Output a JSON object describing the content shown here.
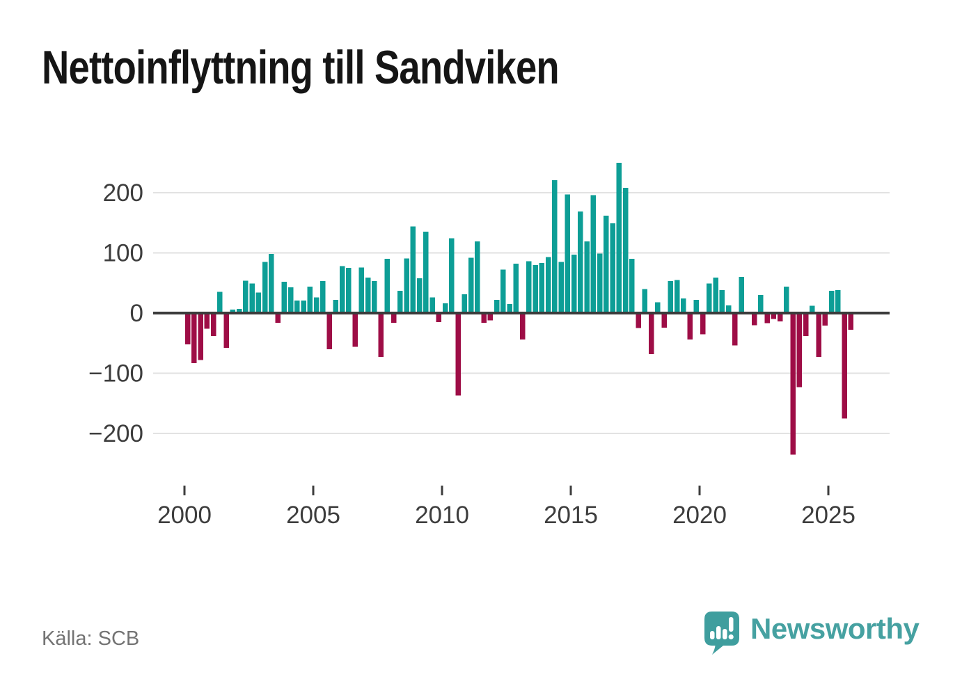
{
  "title": "Nettoinflyttning till Sandviken",
  "source": "Källa: SCB",
  "logo": {
    "text": "Newsworthy",
    "icon": "bar-chart-speech-bubble-icon",
    "badge_color": "#3f9e9e",
    "text_color": "#46a1a1"
  },
  "colors": {
    "positive": "#0d9e96",
    "negative": "#9e0d46",
    "grid": "#e2e2e2",
    "zero_line": "#3b3b3b",
    "axis_text": "#3d3d3d",
    "tick_mark": "#3d3d3d",
    "title_text": "#151515",
    "source_text": "#737373",
    "background": "#ffffff"
  },
  "chart_data": {
    "type": "bar",
    "title": "Nettoinflyttning till Sandviken",
    "frequency": "quarterly",
    "start": "2000Q1",
    "end": "2025Q4",
    "xlabel": "",
    "ylabel": "",
    "ylim": [
      -265,
      275
    ],
    "grid": true,
    "legend": "none",
    "y_tick_labels": [
      "200",
      "100",
      "0",
      "−100",
      "−200"
    ],
    "y_tick_values": [
      200,
      100,
      0,
      -100,
      -200
    ],
    "x_tick_labels": [
      "2000",
      "2005",
      "2010",
      "2015",
      "2020",
      "2025"
    ],
    "x_tick_years": [
      2000,
      2005,
      2010,
      2015,
      2020,
      2025
    ],
    "values": [
      -52,
      -83,
      -78,
      -26,
      -38,
      35,
      -58,
      6,
      7,
      54,
      49,
      34,
      85,
      98,
      -16,
      52,
      43,
      21,
      21,
      44,
      26,
      53,
      -60,
      22,
      78,
      75,
      -56,
      76,
      59,
      53,
      -73,
      90,
      -16,
      37,
      91,
      144,
      58,
      135,
      26,
      -15,
      16,
      124,
      -137,
      31,
      92,
      119,
      -16,
      -12,
      22,
      72,
      15,
      82,
      -44,
      86,
      80,
      83,
      93,
      221,
      85,
      197,
      97,
      169,
      119,
      196,
      99,
      162,
      149,
      250,
      208,
      90,
      -25,
      40,
      -68,
      18,
      -24,
      53,
      55,
      24,
      -44,
      22,
      -35,
      49,
      59,
      38,
      13,
      -54,
      60,
      0,
      -20,
      30,
      -17,
      -10,
      -14,
      44,
      -235,
      -123,
      -38,
      12,
      -73,
      -21,
      37,
      38,
      -175,
      -28
    ]
  }
}
